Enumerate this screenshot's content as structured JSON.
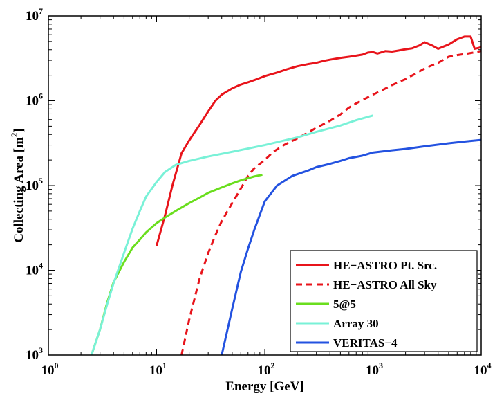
{
  "chart_data": {
    "type": "line",
    "title": "",
    "xlabel": "Energy [GeV]",
    "ylabel_base": "Collecting Area [m",
    "ylabel_exp": "2",
    "ylabel_end": "]",
    "xscale": "log",
    "yscale": "log",
    "xlim": [
      1,
      10000
    ],
    "ylim": [
      1000,
      10000000
    ],
    "x_ticks": [
      {
        "base": "10",
        "exp": "0",
        "value": 1
      },
      {
        "base": "10",
        "exp": "1",
        "value": 10
      },
      {
        "base": "10",
        "exp": "2",
        "value": 100
      },
      {
        "base": "10",
        "exp": "3",
        "value": 1000
      },
      {
        "base": "10",
        "exp": "4",
        "value": 10000
      }
    ],
    "y_ticks": [
      {
        "base": "10",
        "exp": "3",
        "value": 1000
      },
      {
        "base": "10",
        "exp": "4",
        "value": 10000
      },
      {
        "base": "10",
        "exp": "5",
        "value": 100000
      },
      {
        "base": "10",
        "exp": "6",
        "value": 1000000
      },
      {
        "base": "10",
        "exp": "7",
        "value": 10000000
      }
    ],
    "legend_position": "bottom-right",
    "series": [
      {
        "name": "HE−ASTRO Pt. Src.",
        "color": "#e8141b",
        "style": "solid",
        "points": [
          [
            10,
            19500
          ],
          [
            12,
            45000
          ],
          [
            14,
            100000
          ],
          [
            17,
            240000
          ],
          [
            20,
            340000
          ],
          [
            25,
            520000
          ],
          [
            30,
            750000
          ],
          [
            35,
            1000000
          ],
          [
            40,
            1180000
          ],
          [
            50,
            1400000
          ],
          [
            60,
            1550000
          ],
          [
            70,
            1650000
          ],
          [
            80,
            1750000
          ],
          [
            100,
            1950000
          ],
          [
            130,
            2150000
          ],
          [
            160,
            2350000
          ],
          [
            200,
            2550000
          ],
          [
            250,
            2700000
          ],
          [
            300,
            2800000
          ],
          [
            350,
            2950000
          ],
          [
            400,
            3050000
          ],
          [
            500,
            3200000
          ],
          [
            600,
            3300000
          ],
          [
            700,
            3400000
          ],
          [
            800,
            3500000
          ],
          [
            900,
            3700000
          ],
          [
            1000,
            3750000
          ],
          [
            1100,
            3600000
          ],
          [
            1300,
            3850000
          ],
          [
            1500,
            3800000
          ],
          [
            1700,
            3900000
          ],
          [
            2000,
            4050000
          ],
          [
            2300,
            4150000
          ],
          [
            2700,
            4500000
          ],
          [
            3000,
            4900000
          ],
          [
            3500,
            4500000
          ],
          [
            4000,
            4100000
          ],
          [
            5000,
            4600000
          ],
          [
            6000,
            5300000
          ],
          [
            7000,
            5700000
          ],
          [
            8000,
            5700000
          ],
          [
            8700,
            4100000
          ],
          [
            9500,
            4200000
          ],
          [
            10000,
            4300000
          ]
        ]
      },
      {
        "name": "HE−ASTRO All Sky",
        "color": "#e8141b",
        "style": "dashed",
        "points": [
          [
            17,
            1000
          ],
          [
            20,
            2600
          ],
          [
            25,
            8000
          ],
          [
            30,
            16000
          ],
          [
            35,
            26000
          ],
          [
            40,
            38000
          ],
          [
            50,
            62000
          ],
          [
            60,
            92000
          ],
          [
            70,
            130000
          ],
          [
            80,
            160000
          ],
          [
            100,
            200000
          ],
          [
            120,
            250000
          ],
          [
            150,
            300000
          ],
          [
            200,
            360000
          ],
          [
            250,
            420000
          ],
          [
            300,
            480000
          ],
          [
            400,
            580000
          ],
          [
            500,
            690000
          ],
          [
            600,
            830000
          ],
          [
            700,
            930000
          ],
          [
            800,
            1020000
          ],
          [
            1000,
            1180000
          ],
          [
            1200,
            1320000
          ],
          [
            1500,
            1530000
          ],
          [
            2000,
            1800000
          ],
          [
            2500,
            2100000
          ],
          [
            3000,
            2400000
          ],
          [
            4000,
            2800000
          ],
          [
            5000,
            3300000
          ],
          [
            6000,
            3450000
          ],
          [
            7000,
            3550000
          ],
          [
            8000,
            3650000
          ],
          [
            9000,
            3750000
          ],
          [
            10000,
            3850000
          ]
        ]
      },
      {
        "name": "5@5",
        "color": "#6ade1e",
        "style": "solid",
        "points": [
          [
            2.5,
            1000
          ],
          [
            3,
            2000
          ],
          [
            3.5,
            4200
          ],
          [
            4,
            7200
          ],
          [
            5,
            12500
          ],
          [
            6,
            18500
          ],
          [
            7,
            23000
          ],
          [
            8,
            28000
          ],
          [
            10,
            36000
          ],
          [
            12,
            42000
          ],
          [
            15,
            50000
          ],
          [
            20,
            62000
          ],
          [
            25,
            72000
          ],
          [
            30,
            82000
          ],
          [
            40,
            95000
          ],
          [
            50,
            106000
          ],
          [
            60,
            115000
          ],
          [
            70,
            122000
          ],
          [
            80,
            128000
          ],
          [
            95,
            134000
          ]
        ]
      },
      {
        "name": "Array 30",
        "color": "#79f1d7",
        "style": "solid",
        "points": [
          [
            2.5,
            1000
          ],
          [
            3,
            2000
          ],
          [
            3.5,
            4000
          ],
          [
            4,
            7000
          ],
          [
            5,
            16000
          ],
          [
            6,
            31000
          ],
          [
            7,
            50000
          ],
          [
            8,
            74000
          ],
          [
            10,
            110000
          ],
          [
            12,
            145000
          ],
          [
            15,
            175000
          ],
          [
            20,
            195000
          ],
          [
            30,
            220000
          ],
          [
            50,
            250000
          ],
          [
            100,
            300000
          ],
          [
            200,
            370000
          ],
          [
            300,
            430000
          ],
          [
            500,
            510000
          ],
          [
            700,
            590000
          ],
          [
            1000,
            670000
          ]
        ]
      },
      {
        "name": "VERITAS−4",
        "color": "#2352e0",
        "style": "solid",
        "points": [
          [
            40,
            1000
          ],
          [
            50,
            3500
          ],
          [
            60,
            9500
          ],
          [
            70,
            18000
          ],
          [
            80,
            30000
          ],
          [
            100,
            65000
          ],
          [
            130,
            100000
          ],
          [
            180,
            130000
          ],
          [
            250,
            150000
          ],
          [
            300,
            165000
          ],
          [
            400,
            180000
          ],
          [
            500,
            195000
          ],
          [
            600,
            210000
          ],
          [
            800,
            225000
          ],
          [
            1000,
            245000
          ],
          [
            1500,
            260000
          ],
          [
            2000,
            270000
          ],
          [
            3000,
            290000
          ],
          [
            5000,
            315000
          ],
          [
            7000,
            330000
          ],
          [
            10000,
            345000
          ]
        ]
      }
    ]
  }
}
